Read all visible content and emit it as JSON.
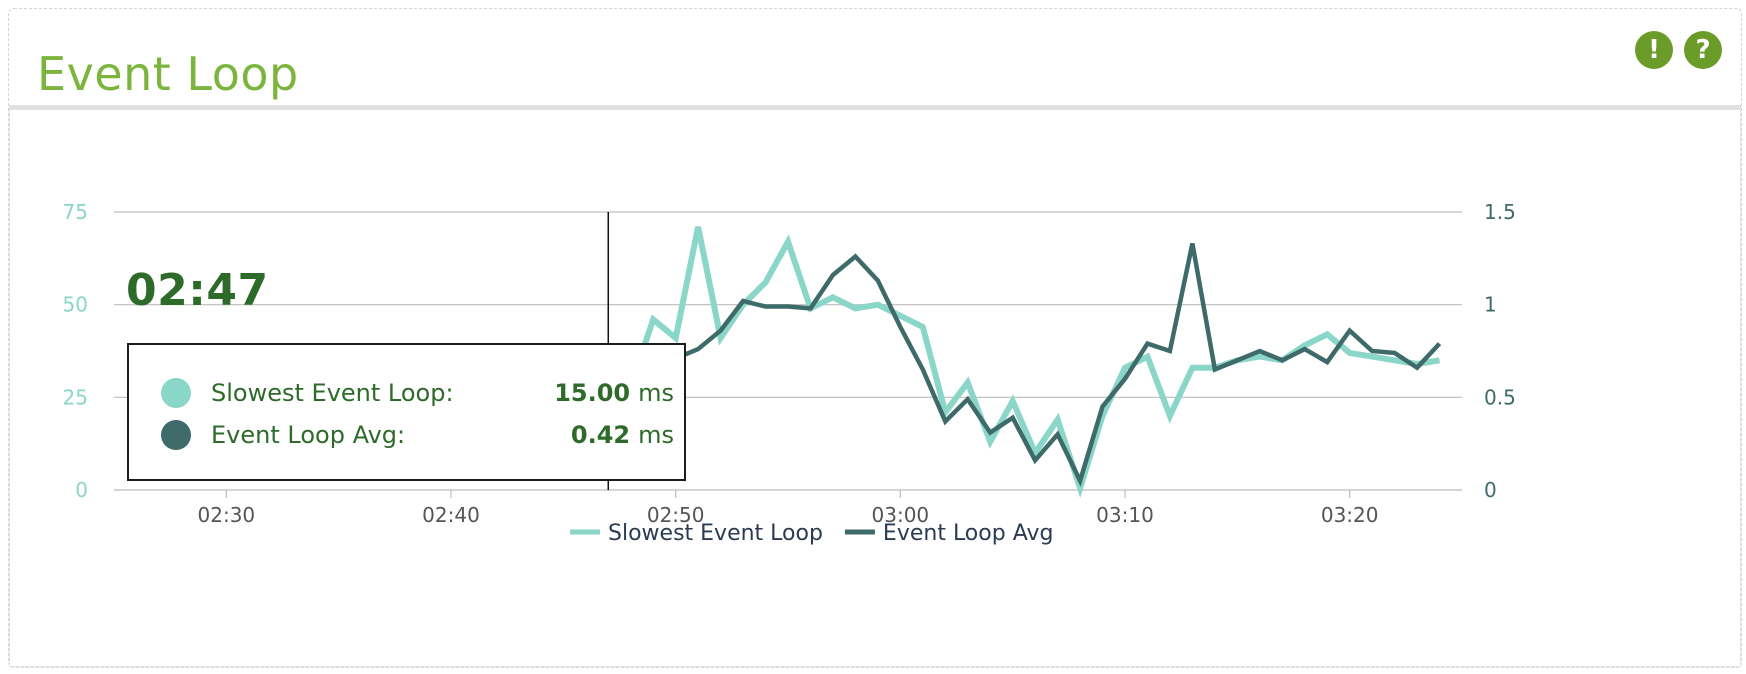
{
  "panel": {
    "title": "Event Loop",
    "icons": [
      {
        "name": "alert-icon",
        "glyph": "!"
      },
      {
        "name": "help-icon",
        "glyph": "?"
      }
    ]
  },
  "hover": {
    "time": "02:47",
    "rows": [
      {
        "label": "Slowest Event Loop:",
        "value": "15.00",
        "unit": "ms",
        "color": "#8ad6c8"
      },
      {
        "label": "Event Loop Avg:",
        "value": "0.42",
        "unit": "ms",
        "color": "#3f6a6a"
      }
    ]
  },
  "colors": {
    "slowest": "#8ad6c8",
    "avg": "#3f6a6a",
    "left_axis_text": "#8ad6c8",
    "right_axis_text": "#3f6a6a",
    "grid": "#bdbdbd",
    "title": "#7cb53d",
    "accent": "#2e6b2a"
  },
  "chart_data": {
    "type": "line",
    "title": "",
    "xlabel": "",
    "ylabel": "",
    "x_ticks": [
      {
        "label": "02:30",
        "minute": 150
      },
      {
        "label": "02:40",
        "minute": 160
      },
      {
        "label": "02:50",
        "minute": 170
      },
      {
        "label": "03:00",
        "minute": 180
      },
      {
        "label": "03:10",
        "minute": 190
      },
      {
        "label": "03:20",
        "minute": 200
      }
    ],
    "xlim": [
      145,
      205
    ],
    "y_left": {
      "range": [
        0,
        75
      ],
      "ticks": [
        "0",
        "25",
        "50",
        "75"
      ]
    },
    "y_right": {
      "range": [
        0,
        1.5
      ],
      "ticks": [
        "0",
        "0.5",
        "1",
        "1.5"
      ]
    },
    "grid": true,
    "legend_position": "bottom-center",
    "cursor_minute": 167,
    "series": [
      {
        "name": "Slowest Event Loop",
        "axis": "left",
        "x": [
          160,
          161,
          162,
          163,
          164,
          165,
          166,
          167,
          168,
          169,
          170,
          171,
          172,
          173,
          174,
          175,
          176,
          177,
          178,
          179,
          180,
          181,
          182,
          183,
          184,
          185,
          186,
          187,
          188,
          189,
          190,
          191,
          192,
          193,
          194,
          195,
          196,
          197,
          198,
          199,
          200,
          201,
          202,
          203,
          204
        ],
        "y": [
          3,
          8,
          11,
          13,
          14,
          14.5,
          15,
          15,
          28,
          46,
          41,
          71,
          41,
          50,
          56,
          67,
          49,
          52,
          49,
          50,
          47,
          44,
          21,
          29,
          13,
          24,
          10,
          19,
          0.5,
          20,
          33,
          36,
          20,
          33,
          33,
          35,
          36,
          35,
          39,
          42,
          37,
          36,
          35,
          34,
          35
        ]
      },
      {
        "name": "Event Loop Avg",
        "axis": "right",
        "x": [
          167,
          168,
          169,
          170,
          171,
          172,
          173,
          174,
          175,
          176,
          177,
          178,
          179,
          180,
          181,
          182,
          183,
          184,
          185,
          186,
          187,
          188,
          189,
          190,
          191,
          192,
          193,
          194,
          195,
          196,
          197,
          198,
          199,
          200,
          201,
          202,
          203,
          204
        ],
        "y": [
          0.42,
          0.71,
          0.69,
          0.71,
          0.76,
          0.86,
          1.02,
          0.99,
          0.99,
          0.98,
          1.16,
          1.26,
          1.13,
          0.88,
          0.65,
          0.37,
          0.49,
          0.31,
          0.39,
          0.16,
          0.3,
          0.05,
          0.45,
          0.6,
          0.79,
          0.75,
          1.33,
          0.65,
          0.7,
          0.75,
          0.7,
          0.76,
          0.69,
          0.86,
          0.75,
          0.74,
          0.66,
          0.79
        ]
      }
    ]
  }
}
